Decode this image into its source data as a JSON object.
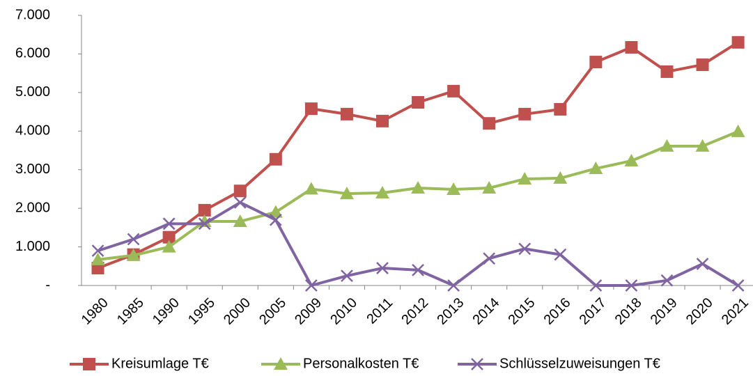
{
  "chart_data": {
    "type": "line",
    "categories": [
      "1980",
      "1985",
      "1990",
      "1995",
      "2000",
      "2005",
      "2009",
      "2010",
      "2011",
      "2012",
      "2013",
      "2014",
      "2015",
      "2016",
      "2017",
      "2018",
      "2019",
      "2020",
      "2021"
    ],
    "series": [
      {
        "name": "Kreisumlage T€",
        "color": "#c0504d",
        "marker": "square",
        "values": [
          450,
          800,
          1250,
          1950,
          2450,
          3270,
          4580,
          4440,
          4260,
          4745,
          5035,
          4200,
          4440,
          4565,
          5790,
          6170,
          5540,
          5720,
          6300
        ]
      },
      {
        "name": "Personalkosten T€",
        "color": "#9bbb59",
        "marker": "triangle",
        "values": [
          670,
          780,
          1000,
          1660,
          1660,
          1900,
          2500,
          2380,
          2400,
          2525,
          2490,
          2525,
          2760,
          2780,
          3030,
          3230,
          3610,
          3610,
          3990
        ]
      },
      {
        "name": "Schlüsselzuweisungen T€",
        "color": "#8064a2",
        "marker": "x",
        "values": [
          900,
          1200,
          1600,
          1600,
          2150,
          1700,
          0,
          250,
          450,
          400,
          0,
          700,
          950,
          800,
          0,
          0,
          130,
          560,
          0
        ]
      }
    ],
    "ylim": [
      0,
      7000
    ],
    "yticks": [
      {
        "value": 0,
        "label": "-"
      },
      {
        "value": 1000,
        "label": "1.000"
      },
      {
        "value": 2000,
        "label": "2.000"
      },
      {
        "value": 3000,
        "label": "3.000"
      },
      {
        "value": 4000,
        "label": "4.000"
      },
      {
        "value": 5000,
        "label": "5.000"
      },
      {
        "value": 6000,
        "label": "6.000"
      },
      {
        "value": 7000,
        "label": "7.000"
      }
    ],
    "grid": false,
    "legend": "bottom"
  }
}
